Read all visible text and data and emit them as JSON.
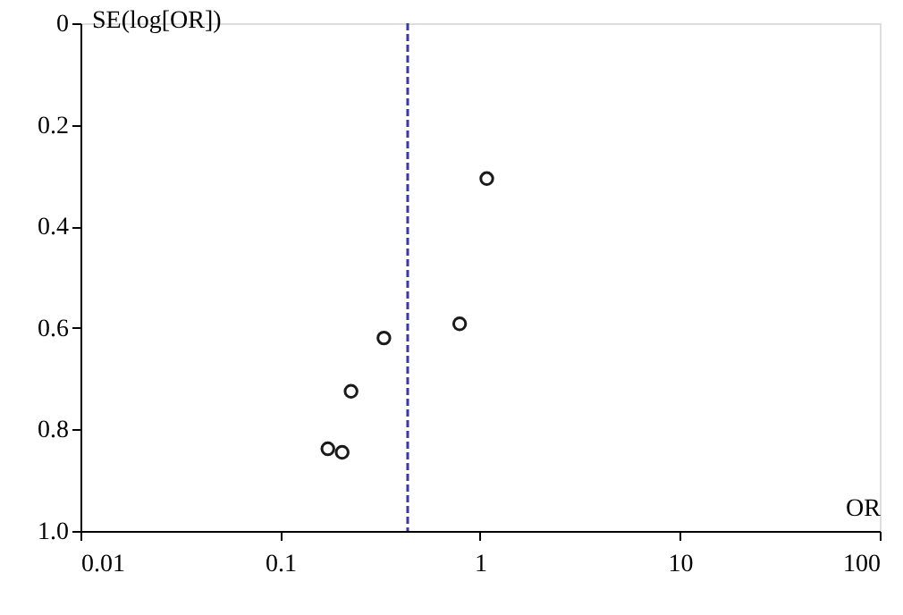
{
  "chart_data": {
    "type": "scatter",
    "xlabel": "OR",
    "ylabel": "SE(log[OR])",
    "x": [
      1.08,
      0.79,
      0.33,
      0.226,
      0.173,
      0.204
    ],
    "series": [
      {
        "color": "#1a1a1a",
        "values": [
          0.306,
          0.592,
          0.62,
          0.725,
          0.838,
          0.845
        ]
      }
    ],
    "marker": "circle",
    "log": "x",
    "xlim": [
      0.01,
      100
    ],
    "xticks": [
      0.01,
      0.1,
      1,
      10,
      100
    ],
    "ylim": [
      1.0,
      0
    ],
    "yticks": [
      0,
      0.2,
      0.4,
      0.6,
      0.8,
      {
        "value": 1.0,
        "label": "1.0"
      }
    ],
    "ref_lines": [
      {
        "axis": "x",
        "value": 0.434,
        "color": "#3a3a9e",
        "line_style": "dashed"
      }
    ],
    "grid": false
  }
}
